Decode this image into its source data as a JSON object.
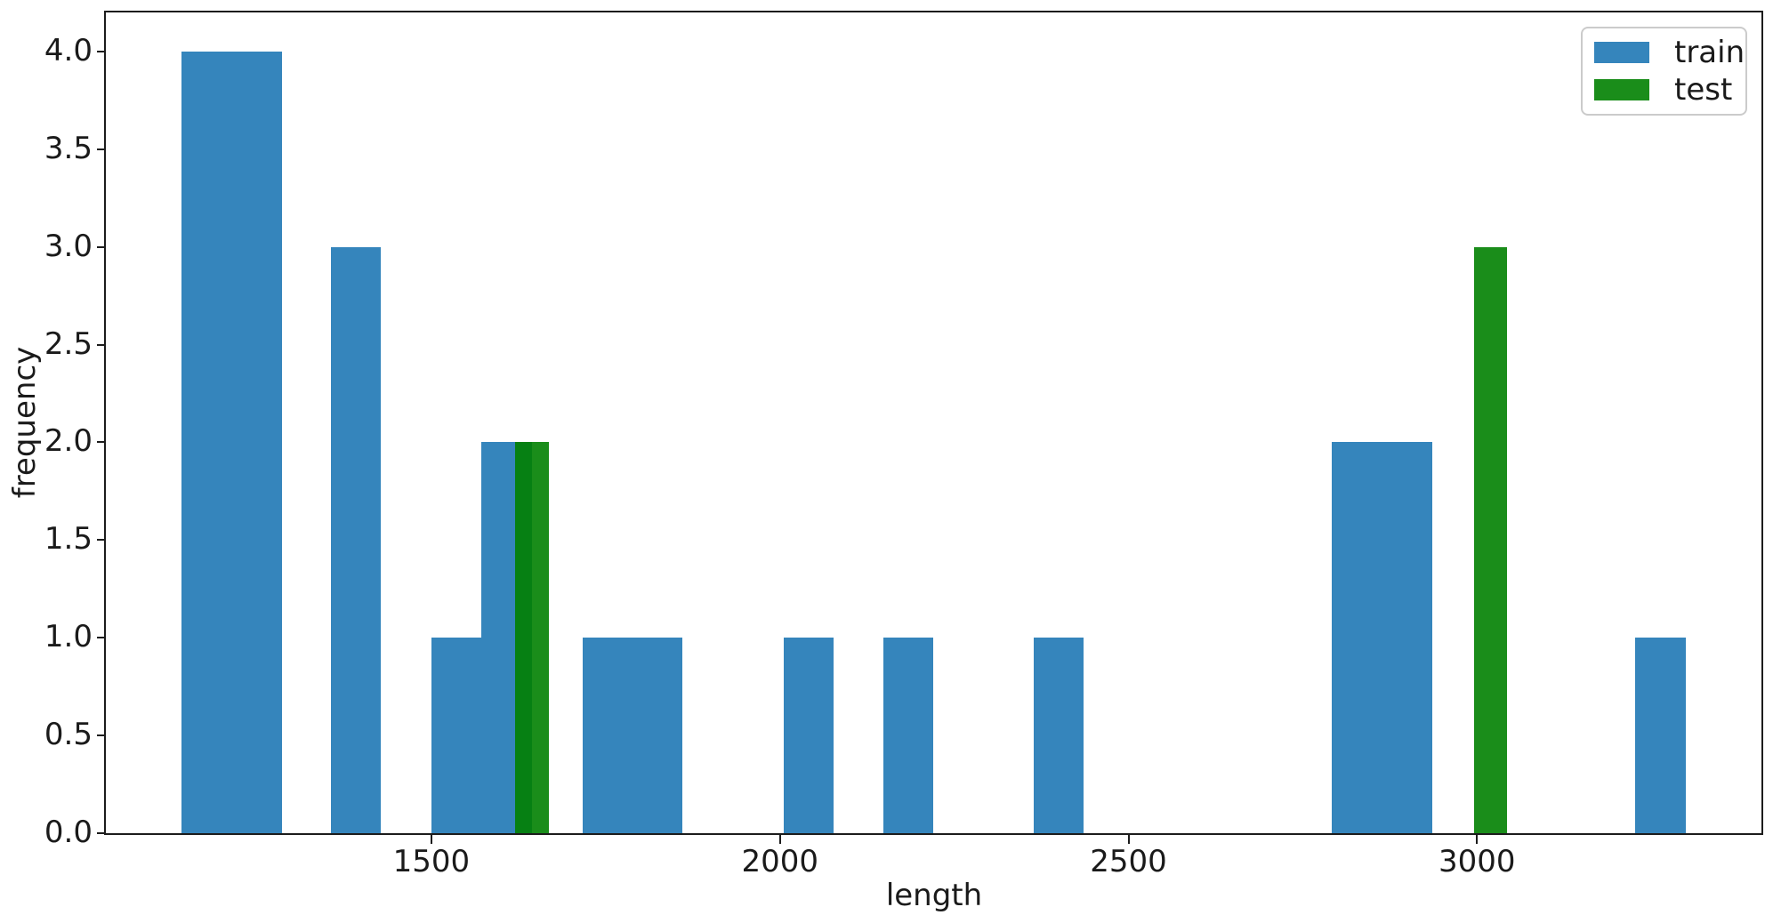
{
  "chart_data": {
    "type": "histogram",
    "title": "",
    "xlabel": "length",
    "ylabel": "frequency",
    "xlim": [
      1033,
      3408
    ],
    "ylim": [
      0,
      4.2
    ],
    "grid": false,
    "x_ticks": [
      1500,
      2000,
      2500,
      3000
    ],
    "y_ticks": [
      0.0,
      0.5,
      1.0,
      1.5,
      2.0,
      2.5,
      3.0,
      3.5,
      4.0
    ],
    "legend": {
      "position": "upper right",
      "entries": [
        {
          "label": "train",
          "color": "#3585bc"
        },
        {
          "label": "test",
          "color": "#1a8d1a"
        }
      ]
    },
    "series": [
      {
        "name": "train",
        "color": "#3585bc",
        "bars": [
          [
            1141,
            1286,
            4
          ],
          [
            1356,
            1427,
            3
          ],
          [
            1500,
            1572,
            1
          ],
          [
            1572,
            1644,
            2
          ],
          [
            1717,
            1860,
            1
          ],
          [
            2005,
            2077,
            1
          ],
          [
            2148,
            2220,
            1
          ],
          [
            2364,
            2436,
            1
          ],
          [
            2792,
            2936,
            2
          ],
          [
            3227,
            3299,
            1
          ]
        ]
      },
      {
        "name": "test",
        "color": "#1a8d1a",
        "overlap_color": "#068013",
        "bars": [
          [
            1620,
            1669,
            2
          ],
          [
            2996,
            3043,
            3
          ]
        ]
      }
    ],
    "colors": {
      "spine": "#1c1c1c",
      "legend_border": "#cbcbcb",
      "background": "#ffffff"
    }
  }
}
